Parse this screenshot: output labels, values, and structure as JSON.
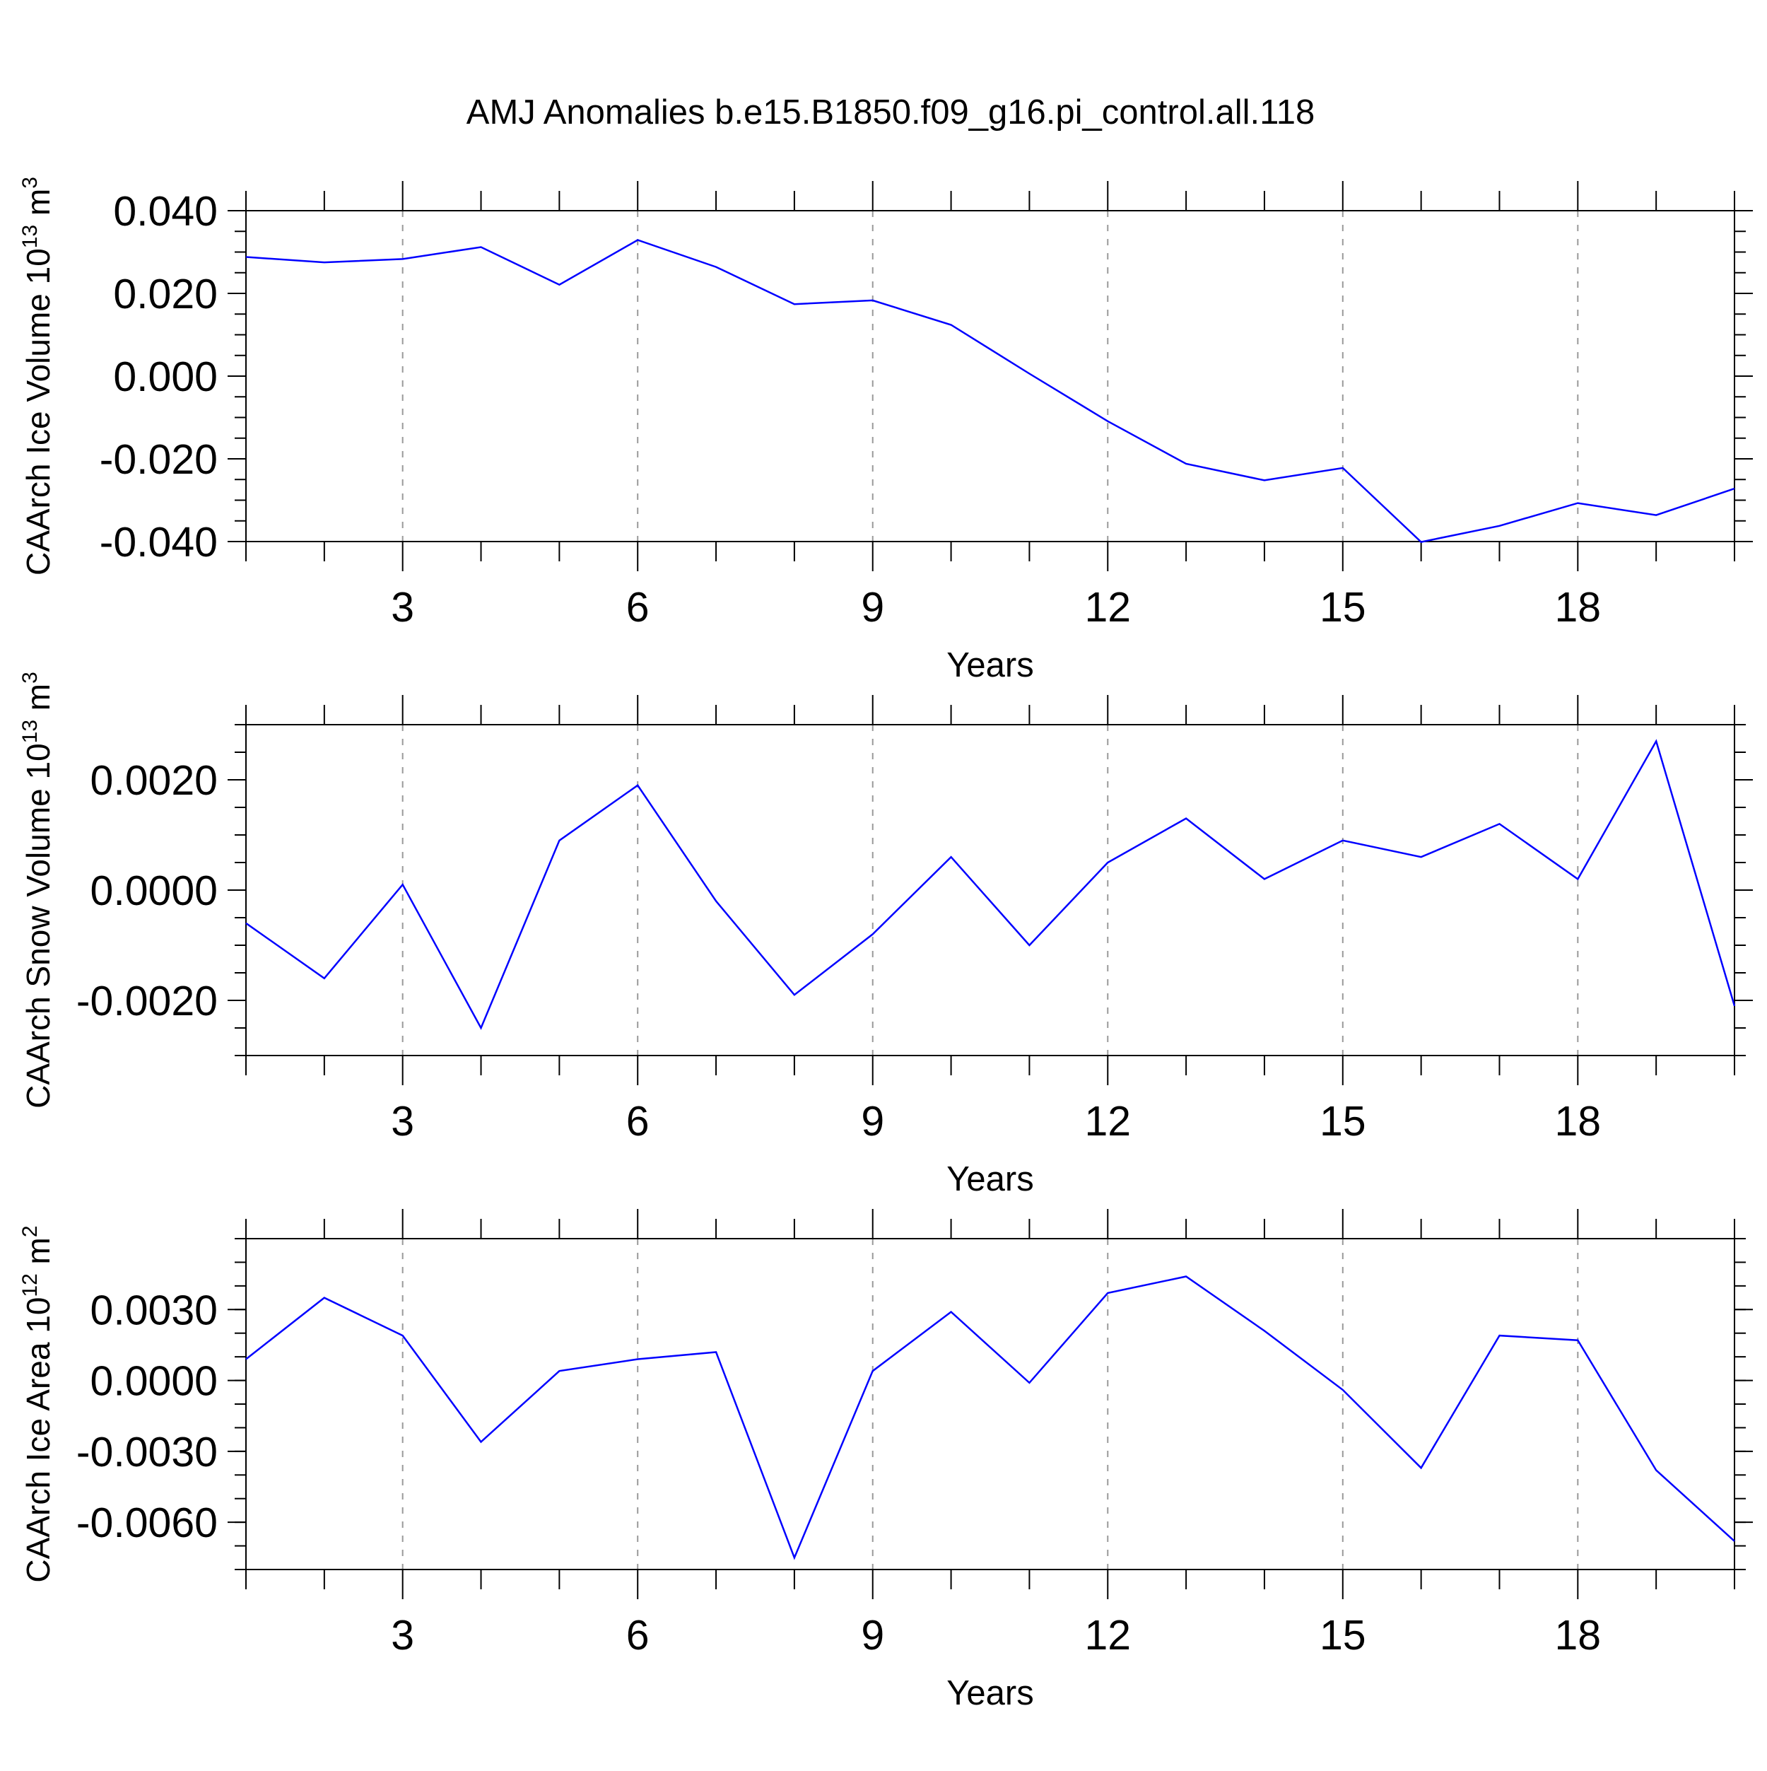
{
  "title": "AMJ Anomalies b.e15.B1850.f09_g16.pi_control.all.118",
  "style": {
    "line_color": "#0000ff",
    "grid_color": "#999999",
    "grid": "dashed vertical at major x ticks"
  },
  "chart_data": [
    {
      "type": "line",
      "ylabel": {
        "main": "CAArch Ice Volume 10",
        "exp": "13",
        "unit": "m",
        "unit_exp": "3"
      },
      "xlabel": "Years",
      "xlim": [
        1,
        20
      ],
      "x_major_ticks": [
        3,
        6,
        9,
        12,
        15,
        18
      ],
      "x_tick_labels": [
        "3",
        "6",
        "9",
        "12",
        "15",
        "18"
      ],
      "ylim": [
        -0.04,
        0.04
      ],
      "y_major_ticks": [
        -0.04,
        -0.02,
        0.0,
        0.02,
        0.04
      ],
      "y_tick_labels": [
        "-0.040",
        "-0.020",
        "0.000",
        "0.020",
        "0.040"
      ],
      "y_minor_step": 0.005,
      "x": [
        1,
        2,
        3,
        4,
        5,
        6,
        7,
        8,
        9,
        10,
        11,
        12,
        13,
        14,
        15,
        16,
        17,
        18,
        19,
        20
      ],
      "values": [
        0.0288,
        0.0275,
        0.0283,
        0.0312,
        0.0221,
        0.0329,
        0.0264,
        0.0174,
        0.0183,
        0.0124,
        0.0006,
        -0.0109,
        -0.0212,
        -0.0252,
        -0.0222,
        -0.0401,
        -0.0362,
        -0.0307,
        -0.0336,
        -0.0272
      ]
    },
    {
      "type": "line",
      "ylabel": {
        "main": "CAArch Snow Volume 10",
        "exp": "13",
        "unit": "m",
        "unit_exp": "3"
      },
      "xlabel": "Years",
      "xlim": [
        1,
        20
      ],
      "x_major_ticks": [
        3,
        6,
        9,
        12,
        15,
        18
      ],
      "x_tick_labels": [
        "3",
        "6",
        "9",
        "12",
        "15",
        "18"
      ],
      "ylim": [
        -0.003,
        0.003
      ],
      "y_major_ticks": [
        -0.002,
        0.0,
        0.002
      ],
      "y_tick_labels": [
        "-0.0020",
        "0.0000",
        "0.0020"
      ],
      "y_minor_step": 0.0005,
      "x": [
        1,
        2,
        3,
        4,
        5,
        6,
        7,
        8,
        9,
        10,
        11,
        12,
        13,
        14,
        15,
        16,
        17,
        18,
        19,
        20
      ],
      "values": [
        -0.0006,
        -0.0016,
        0.0001,
        -0.0025,
        0.0009,
        0.0019,
        -0.0002,
        -0.0019,
        -0.0008,
        0.0006,
        -0.001,
        0.0005,
        0.0013,
        0.0002,
        0.0009,
        0.0006,
        0.0012,
        0.0002,
        0.0027,
        -0.0021
      ]
    },
    {
      "type": "line",
      "ylabel": {
        "main": "CAArch Ice Area 10",
        "exp": "12",
        "unit": "m",
        "unit_exp": "2"
      },
      "xlabel": "Years",
      "xlim": [
        1,
        20
      ],
      "x_major_ticks": [
        3,
        6,
        9,
        12,
        15,
        18
      ],
      "x_tick_labels": [
        "3",
        "6",
        "9",
        "12",
        "15",
        "18"
      ],
      "ylim": [
        -0.008,
        0.006
      ],
      "y_major_ticks": [
        -0.006,
        -0.003,
        0.0,
        0.003
      ],
      "y_tick_labels": [
        "-0.0060",
        "-0.0030",
        "0.0000",
        "0.0030"
      ],
      "y_minor_step": 0.001,
      "x": [
        1,
        2,
        3,
        4,
        5,
        6,
        7,
        8,
        9,
        10,
        11,
        12,
        13,
        14,
        15,
        16,
        17,
        18,
        19,
        20
      ],
      "values": [
        0.0009,
        0.0035,
        0.0019,
        -0.0026,
        0.0004,
        0.0009,
        0.0012,
        -0.0075,
        0.0004,
        0.0029,
        -0.0001,
        0.0037,
        0.0044,
        0.0021,
        -0.0004,
        -0.0037,
        0.0019,
        0.0017,
        -0.0038,
        -0.0068
      ]
    }
  ]
}
